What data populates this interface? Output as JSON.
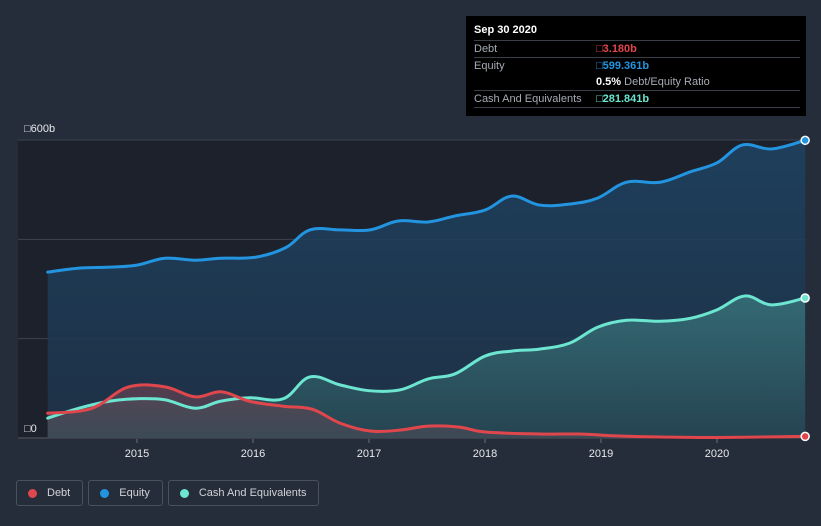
{
  "tooltip": {
    "date": "Sep 30 2020",
    "rows": [
      {
        "label": "Debt",
        "value": "□3.180b",
        "color": "#e0474c"
      },
      {
        "label": "Equity",
        "value": "□599.361b",
        "color": "#2394df"
      },
      {
        "label": "",
        "ratio_value": "0.5%",
        "ratio_label": " Debt/Equity Ratio"
      },
      {
        "label": "Cash And Equivalents",
        "value": "□281.841b",
        "color": "#6ce5d1"
      }
    ]
  },
  "legend": [
    {
      "label": "Debt",
      "color": "#e0474c"
    },
    {
      "label": "Equity",
      "color": "#2394df"
    },
    {
      "label": "Cash And Equivalents",
      "color": "#6ce5d1"
    }
  ],
  "chart_data": {
    "type": "area",
    "title": "",
    "xlabel": "",
    "ylabel": "",
    "currency_symbol": "□",
    "ylim": [
      0,
      600
    ],
    "xlim": [
      2014.0,
      2020.76
    ],
    "y_tick_labels": [
      {
        "value": 600,
        "label": "□600b"
      },
      {
        "value": 0,
        "label": "□0"
      }
    ],
    "gridlines_y": [
      0,
      200,
      400,
      600
    ],
    "x_ticks": [
      2015,
      2016,
      2017,
      2018,
      2019,
      2020
    ],
    "x_tick_labels": [
      "2015",
      "2016",
      "2017",
      "2018",
      "2019",
      "2020"
    ],
    "legend_position": "bottom-left",
    "units": "b",
    "series": [
      {
        "name": "Equity",
        "color": "#2394df",
        "x": [
          2014.23,
          2014.5,
          2014.76,
          2015.0,
          2015.24,
          2015.5,
          2015.72,
          2016.02,
          2016.28,
          2016.49,
          2016.75,
          2017.01,
          2017.25,
          2017.51,
          2017.74,
          2018.0,
          2018.23,
          2018.47,
          2018.73,
          2018.97,
          2019.22,
          2019.51,
          2019.77,
          2020.0,
          2020.22,
          2020.47,
          2020.76
        ],
        "values": [
          334,
          342,
          344,
          348,
          362,
          358,
          362,
          364,
          383,
          419,
          419,
          419,
          437,
          435,
          447,
          459,
          487,
          469,
          471,
          483,
          515,
          515,
          536,
          554,
          590,
          582,
          599.361
        ]
      },
      {
        "name": "Cash And Equivalents",
        "color": "#6ce5d1",
        "x": [
          2014.23,
          2014.5,
          2014.76,
          2015.0,
          2015.24,
          2015.5,
          2015.72,
          2015.97,
          2016.26,
          2016.49,
          2016.75,
          2017.01,
          2017.27,
          2017.51,
          2017.74,
          2018.0,
          2018.23,
          2018.47,
          2018.73,
          2018.97,
          2019.22,
          2019.51,
          2019.77,
          2020.0,
          2020.24,
          2020.47,
          2020.76
        ],
        "values": [
          40,
          60,
          74,
          79,
          77,
          60,
          74,
          81,
          79,
          123,
          107,
          95,
          97,
          119,
          129,
          165,
          175,
          179,
          191,
          223,
          237,
          235,
          241,
          258,
          286,
          268,
          281.841
        ]
      },
      {
        "name": "Debt",
        "color": "#e0474c",
        "x": [
          2014.23,
          2014.5,
          2014.67,
          2014.93,
          2015.24,
          2015.5,
          2015.73,
          2015.97,
          2016.26,
          2016.51,
          2016.75,
          2017.01,
          2017.27,
          2017.51,
          2017.78,
          2018.0,
          2018.47,
          2018.81,
          2019.16,
          2019.51,
          2020.0,
          2020.76
        ],
        "values": [
          50,
          54,
          66,
          103,
          103,
          83,
          93,
          74,
          64,
          58,
          30,
          14,
          16,
          24,
          22,
          12,
          8,
          8,
          4,
          2,
          1,
          3.18
        ]
      }
    ]
  }
}
